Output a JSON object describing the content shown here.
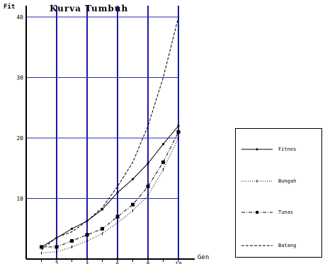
{
  "chart_data": {
    "type": "line",
    "title": "Kurva Tumbuh",
    "xlabel": "Gen",
    "ylabel": "Fit",
    "xlim": [
      0,
      10
    ],
    "ylim": [
      0,
      40
    ],
    "x_ticks": [
      "2",
      "4",
      "6",
      "8",
      "10"
    ],
    "y_ticks": [
      "10",
      "20",
      "30",
      "40"
    ],
    "grid": "vertical and horizontal lines",
    "legend_position": "right",
    "colors": {
      "grid_vertical": "#1a1aa6",
      "grid_horizontal": "#2a2ab0",
      "lines": "#000000"
    },
    "series": [
      {
        "name": "Fitnes",
        "marker": "dot",
        "x": [
          1,
          2,
          3,
          4,
          5,
          6,
          7,
          8,
          9,
          10
        ],
        "y": [
          2,
          3.5,
          5,
          6.3,
          8.2,
          11,
          13.2,
          15.8,
          19,
          22
        ]
      },
      {
        "name": "Bungah",
        "marker": "tick",
        "x": [
          1,
          2,
          3,
          4,
          5,
          6,
          7,
          8,
          9,
          10
        ],
        "y": [
          1,
          1.2,
          2,
          3,
          4.2,
          6,
          8,
          10.5,
          14.8,
          20
        ]
      },
      {
        "name": "Tunas",
        "marker": "square",
        "x": [
          1,
          2,
          3,
          4,
          5,
          6,
          7,
          8,
          9,
          10
        ],
        "y": [
          2,
          2,
          3,
          4,
          5,
          7,
          9,
          12,
          16,
          21
        ]
      },
      {
        "name": "Batang",
        "marker": "none",
        "x": [
          1,
          2,
          3,
          4,
          5,
          6,
          7,
          8,
          9,
          10
        ],
        "y": [
          1.5,
          3.6,
          4.5,
          6.3,
          8.5,
          12,
          16,
          22,
          30,
          40
        ]
      }
    ]
  }
}
